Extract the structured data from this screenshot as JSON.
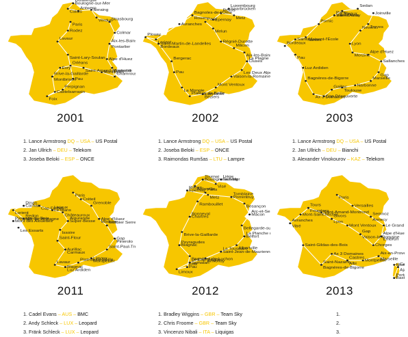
{
  "brand": {
    "yellow": "#f7c600",
    "route": "#ffffff",
    "text": "#1a1a1a"
  },
  "editions": [
    {
      "year": "2001",
      "results": [
        {
          "rank": "1.",
          "rider": "Lance Armstrong",
          "codes": "DQ – USA –",
          "team": "US Postal"
        },
        {
          "rank": "2.",
          "rider": "Jan Ullrich",
          "codes": "– DEU –",
          "team": "Telekom"
        },
        {
          "rank": "3.",
          "rider": "Joseba Beloki",
          "codes": "– ESP –",
          "team": "ONCE"
        }
      ],
      "places": [
        "Dunkerque",
        "Boulogne-sur-Mer",
        "Calais",
        "Antwerp",
        "Seraing",
        "Verdun",
        "Strasbourg",
        "Colmar",
        "Pontarlier",
        "Aix-les-Bains",
        "Alpe d'Huez",
        "Grenoble",
        "Chamrousse",
        "Montluçon",
        "Saint-Amand-Montrond",
        "Orléans",
        "Évry",
        "Montbrison",
        "Brive-la-Gaillarde",
        "Castelsarrasin",
        "Foix",
        "Perpignan",
        "Pau",
        "Saint-Lary-Soulan",
        "Lavaur",
        "Rodez",
        "Paris"
      ]
    },
    {
      "year": "2002",
      "results": [
        {
          "rank": "1.",
          "rider": "Lance Armstrong",
          "codes": "DQ – USA –",
          "team": "US Postal"
        },
        {
          "rank": "2.",
          "rider": "Joseba Beloki",
          "codes": "– ESP –",
          "team": "ONCE"
        },
        {
          "rank": "3.",
          "rider": "Raimondas Rumšas",
          "codes": "– LTU –",
          "team": "Lampre"
        }
      ],
      "places": [
        "Luxembourg",
        "Saarbrücken",
        "Metz",
        "Reims",
        "Épernay",
        "Rouen",
        "Bagnoles-de-l'Orne",
        "Avranches",
        "Lorient",
        "Plouay",
        "Saint-Martin-de-Landelles",
        "Bordeaux",
        "Bergerac",
        "Pau",
        "La Mongie",
        "Plateau de Beille",
        "Lavelanet",
        "Béziers",
        "Mont Ventoux",
        "Vaison-la-Romaine",
        "Les Deux Alpes",
        "La Plagne",
        "Cluses",
        "Aix-les-Bains",
        "Mâcon",
        "Régnié-Durette",
        "Melun",
        "Paris"
      ]
    },
    {
      "year": "2003",
      "results": [
        {
          "rank": "1.",
          "rider": "Lance Armstrong",
          "codes": "DQ – USA –",
          "team": "US Postal"
        },
        {
          "rank": "2.",
          "rider": "Jan Ullrich",
          "codes": "– DEU –",
          "team": "Bianchi"
        },
        {
          "rank": "3.",
          "rider": "Alexander Vinokourov",
          "codes": "– KAZ –",
          "team": "Telekom"
        }
      ],
      "places": [
        "Paris",
        "Saint-Denis",
        "Meaux",
        "Sedan",
        "Joinville",
        "Troyes",
        "Nevers",
        "Lyon",
        "Morzine",
        "Alpe d'Huez",
        "Sallanches",
        "Gap",
        "Marseille",
        "Narbonne",
        "Toulouse",
        "Gaillac",
        "Cap Découverte",
        "Ax 3 Domaines",
        "Bagnères-de-Bigorre",
        "Luz Ardiden",
        "Pau",
        "Bordeaux",
        "Saint-Maixent-l'École",
        "Nantes",
        "Pornic",
        "Ville-d'Avray"
      ]
    },
    {
      "year": "2011",
      "results": [
        {
          "rank": "1.",
          "rider": "Cadel Evans",
          "codes": "– AUS –",
          "team": "BMC"
        },
        {
          "rank": "2.",
          "rider": "Andy Schleck",
          "codes": "– LUX –",
          "team": "Leopard"
        },
        {
          "rank": "3.",
          "rider": "Fränk Schleck",
          "codes": "– LUX –",
          "team": "Leopard"
        }
      ],
      "places": [
        "Passage du Gois",
        "Mont des Alouettes",
        "Les Essarts",
        "Redon",
        "Mûr-de-Bretagne",
        "Lorient",
        "Dinan",
        "Carhaix",
        "Cap Fréhel",
        "Lisieux",
        "Le Mans",
        "Châteauroux",
        "Aigurande",
        "Super-Besse",
        "Issoire",
        "Saint-Flour",
        "Aurillac",
        "Carmaux",
        "Lavaur",
        "Blagnac",
        "Luz Ardiden",
        "Plateau de Beille",
        "Limoux",
        "Montpellier",
        "Saint-Paul-Trois-Châteaux",
        "Gap",
        "Pinerolo",
        "Galibier Serre-Chevalier",
        "Alpe d'Huez",
        "Modane",
        "Grenoble",
        "Créteil",
        "Paris"
      ]
    },
    {
      "year": "2012",
      "results": [
        {
          "rank": "1.",
          "rider": "Bradley Wiggins",
          "codes": "– GBR –",
          "team": "Team Sky"
        },
        {
          "rank": "2.",
          "rider": "Chris Froome",
          "codes": "– GBR –",
          "team": "Team Sky"
        },
        {
          "rank": "3.",
          "rider": "Vincenzo Nibali",
          "codes": "– ITA –",
          "team": "Liquigas"
        }
      ],
      "places": [
        "Liège",
        "Seraing",
        "Visé",
        "Tournai",
        "Boulogne-sur-Mer",
        "Abbeville",
        "Rouen",
        "Épernay",
        "Metz",
        "Tomblaine",
        "Porrentruy",
        "Besançon",
        "Arc-et-Senans",
        "Mâcon",
        "Bellegarde-sur-Valserine",
        "La Planche des Belles Filles",
        "Belfort",
        "Albertville",
        "La Toussuire",
        "Saint-Jean-de-Maurienne",
        "Annonay",
        "Le Cap d'Agde",
        "Samatan",
        "Limoux",
        "Foix",
        "Pau",
        "Bagnères-de-Luchon",
        "Peyragudes",
        "Blagnac",
        "Brive-la-Gaillarde",
        "Bonneval",
        "Chartres",
        "Rambouillet",
        "Paris"
      ]
    },
    {
      "year": "2013",
      "results": [
        {
          "rank": "1.",
          "rider": "",
          "codes": "",
          "team": ""
        },
        {
          "rank": "2.",
          "rider": "",
          "codes": "",
          "team": ""
        },
        {
          "rank": "3.",
          "rider": "",
          "codes": "",
          "team": ""
        }
      ],
      "places": [
        "Porto-Vecchio",
        "Bastia",
        "Ajaccio",
        "Calvi",
        "Nice",
        "Marseille",
        "Aix-en-Provence",
        "Montpellier",
        "Albi",
        "Castres",
        "Ax 3 Domaines",
        "Bagnères-de-Bigorre",
        "Saint-Nazaire",
        "Saint-Gildas-des-Bois",
        "Vitré",
        "Avranches",
        "Mont-Saint-Michel",
        "Fougères",
        "Tours",
        "Saint-Amand-Montrond",
        "Lyon",
        "Givors",
        "Mont Ventoux",
        "Vaison-la-Romaine",
        "Gap",
        "Chorges",
        "Embrun",
        "Alpe d'Huez",
        "Le Grand Bornand",
        "Annecy",
        "Semnoz",
        "Versailles",
        "Paris"
      ]
    }
  ]
}
